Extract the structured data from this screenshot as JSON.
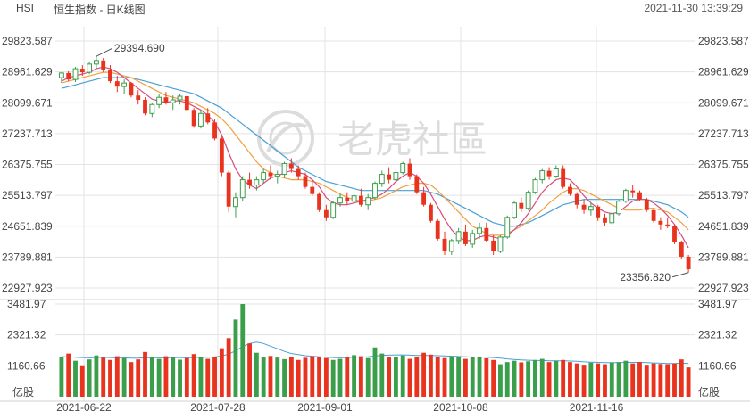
{
  "header": {
    "symbol": "HSI",
    "title": "恒生指数 - 日K线图",
    "timestamp": "2021-11-30 13:39:29"
  },
  "watermark": {
    "text": "老虎社區"
  },
  "colors": {
    "up": "#3a9e4a",
    "down": "#e8331f",
    "ma5": "#d94b7a",
    "ma10": "#f0a040",
    "ma20": "#4a9fd6",
    "grid": "#e3e3e3"
  },
  "chart_data": {
    "type": "candlestick",
    "price_axis": {
      "ticks": [
        "29823.587",
        "28961.629",
        "28099.671",
        "27237.713",
        "26375.755",
        "25513.797",
        "24651.839",
        "23789.881",
        "22927.923"
      ],
      "range": [
        22927.923,
        29823.587
      ]
    },
    "volume_axis": {
      "ticks": [
        "3481.97",
        "2321.32",
        "1160.66"
      ],
      "unit": "亿股",
      "range": [
        0,
        3481.97
      ]
    },
    "x_labels": [
      "2021-06-22",
      "2021-07-28",
      "2021-09-01",
      "2021-10-08",
      "2021-11-16"
    ],
    "annotations": {
      "high": "29394.690",
      "low": "23356.820"
    },
    "price_series": [
      [
        28800,
        28950,
        28650,
        28930
      ],
      [
        28930,
        28980,
        28700,
        28750
      ],
      [
        28750,
        29100,
        28680,
        29050
      ],
      [
        29050,
        29150,
        28850,
        28950
      ],
      [
        28950,
        29250,
        28900,
        29180
      ],
      [
        29180,
        29394.69,
        29050,
        29280
      ],
      [
        29280,
        29350,
        28950,
        29020
      ],
      [
        29020,
        29150,
        28650,
        28700
      ],
      [
        28700,
        28850,
        28400,
        28550
      ],
      [
        28550,
        28750,
        28350,
        28650
      ],
      [
        28650,
        28680,
        28250,
        28300
      ],
      [
        28300,
        28450,
        28050,
        28180
      ],
      [
        28180,
        28250,
        27750,
        27800
      ],
      [
        27800,
        28100,
        27700,
        28050
      ],
      [
        28050,
        28350,
        27950,
        28250
      ],
      [
        28250,
        28400,
        28050,
        28100
      ],
      [
        28100,
        28300,
        27900,
        28180
      ],
      [
        28180,
        28350,
        28050,
        28280
      ],
      [
        28280,
        28320,
        27850,
        27900
      ],
      [
        27900,
        27950,
        27400,
        27450
      ],
      [
        27450,
        27900,
        27380,
        27800
      ],
      [
        27800,
        27950,
        27500,
        27550
      ],
      [
        27550,
        27650,
        27050,
        27100
      ],
      [
        27100,
        27150,
        26050,
        26150
      ],
      [
        26150,
        26200,
        25050,
        25200
      ],
      [
        25200,
        25600,
        24900,
        25450
      ],
      [
        25450,
        26050,
        25350,
        25950
      ],
      [
        25950,
        26150,
        25700,
        25800
      ],
      [
        25800,
        26050,
        25650,
        25950
      ],
      [
        25950,
        26250,
        25850,
        26150
      ],
      [
        26150,
        26350,
        25950,
        26050
      ],
      [
        26050,
        26200,
        25850,
        26100
      ],
      [
        26100,
        26450,
        26000,
        26400
      ],
      [
        26400,
        26550,
        26150,
        26250
      ],
      [
        26250,
        26350,
        25950,
        26050
      ],
      [
        26050,
        26150,
        25700,
        25750
      ],
      [
        25750,
        25950,
        25500,
        25550
      ],
      [
        25550,
        25600,
        25050,
        25100
      ],
      [
        25100,
        25250,
        24800,
        24900
      ],
      [
        24900,
        25350,
        24850,
        25300
      ],
      [
        25300,
        25550,
        25200,
        25450
      ],
      [
        25450,
        25600,
        25250,
        25350
      ],
      [
        25350,
        25650,
        25250,
        25500
      ],
      [
        25500,
        25700,
        25200,
        25250
      ],
      [
        25250,
        25550,
        25100,
        25450
      ],
      [
        25450,
        25900,
        25400,
        25850
      ],
      [
        25850,
        26200,
        25750,
        26100
      ],
      [
        26100,
        26300,
        25850,
        25950
      ],
      [
        25950,
        26250,
        25900,
        26150
      ],
      [
        26150,
        26450,
        26100,
        26400
      ],
      [
        26400,
        26550,
        25950,
        26050
      ],
      [
        26050,
        26100,
        25550,
        25600
      ],
      [
        25600,
        25750,
        25200,
        25250
      ],
      [
        25250,
        25300,
        24750,
        24800
      ],
      [
        24800,
        24850,
        24250,
        24300
      ],
      [
        24300,
        24500,
        23850,
        23950
      ],
      [
        23950,
        24300,
        23850,
        24250
      ],
      [
        24250,
        24600,
        24150,
        24500
      ],
      [
        24500,
        24700,
        24100,
        24150
      ],
      [
        24150,
        24550,
        24050,
        24450
      ],
      [
        24450,
        24750,
        24300,
        24600
      ],
      [
        24600,
        24750,
        24200,
        24250
      ],
      [
        24250,
        24400,
        23850,
        23950
      ],
      [
        23950,
        24400,
        23900,
        24350
      ],
      [
        24350,
        24950,
        24300,
        24900
      ],
      [
        24900,
        25350,
        24850,
        25300
      ],
      [
        25300,
        25450,
        25050,
        25150
      ],
      [
        25150,
        25650,
        25100,
        25600
      ],
      [
        25600,
        26000,
        25550,
        25950
      ],
      [
        25950,
        26250,
        25850,
        26200
      ],
      [
        26200,
        26300,
        25950,
        26050
      ],
      [
        26050,
        26350,
        26000,
        26250
      ],
      [
        26250,
        26350,
        25700,
        25750
      ],
      [
        25750,
        25850,
        25500,
        25550
      ],
      [
        25550,
        25600,
        25150,
        25250
      ],
      [
        25250,
        25400,
        25000,
        25100
      ],
      [
        25100,
        25300,
        24950,
        25200
      ],
      [
        25200,
        25250,
        24800,
        24900
      ],
      [
        24900,
        25000,
        24650,
        24750
      ],
      [
        24750,
        25050,
        24700,
        25000
      ],
      [
        25000,
        25400,
        24950,
        25350
      ],
      [
        25350,
        25700,
        25300,
        25650
      ],
      [
        25650,
        25800,
        25450,
        25600
      ],
      [
        25600,
        25650,
        25350,
        25400
      ],
      [
        25400,
        25450,
        25050,
        25100
      ],
      [
        25100,
        25150,
        24750,
        24800
      ],
      [
        24800,
        24900,
        24550,
        24700
      ],
      [
        24700,
        24900,
        24600,
        24650
      ],
      [
        24650,
        24700,
        24150,
        24200
      ],
      [
        24200,
        24250,
        23750,
        23800
      ],
      [
        23800,
        23850,
        23356.82,
        23450
      ]
    ],
    "ma_series": {
      "ma5": [
        28700,
        28800,
        28850,
        28900,
        28950,
        29050,
        29100,
        29050,
        28950,
        28800,
        28650,
        28500,
        28350,
        28200,
        28150,
        28100,
        28150,
        28150,
        28100,
        28000,
        27900,
        27750,
        27550,
        27200,
        26700,
        26250,
        25950,
        25800,
        25700,
        25850,
        26000,
        26050,
        26150,
        26200,
        26150,
        26100,
        25950,
        25750,
        25450,
        25300,
        25250,
        25250,
        25300,
        25350,
        25400,
        25450,
        25550,
        25700,
        25900,
        26050,
        26150,
        26050,
        25850,
        25550,
        25200,
        24850,
        24550,
        24350,
        24250,
        24250,
        24350,
        24400,
        24350,
        24300,
        24400,
        24550,
        24750,
        25000,
        25300,
        25600,
        25800,
        25950,
        26000,
        25950,
        25750,
        25500,
        25300,
        25150,
        25050,
        25000,
        25050,
        25200,
        25350,
        25400,
        25400,
        25300,
        25150,
        24950,
        24700,
        24400,
        24050
      ],
      "ma10": [
        28650,
        28700,
        28750,
        28800,
        28850,
        28900,
        28950,
        28950,
        28900,
        28850,
        28800,
        28700,
        28600,
        28500,
        28400,
        28300,
        28250,
        28200,
        28150,
        28100,
        28000,
        27900,
        27800,
        27650,
        27450,
        27200,
        26950,
        26700,
        26450,
        26250,
        26150,
        26050,
        26000,
        25950,
        25950,
        25950,
        25900,
        25850,
        25750,
        25650,
        25550,
        25450,
        25400,
        25350,
        25350,
        25400,
        25450,
        25550,
        25650,
        25750,
        25800,
        25850,
        25850,
        25800,
        25650,
        25450,
        25250,
        25050,
        24850,
        24650,
        24550,
        24450,
        24400,
        24400,
        24450,
        24550,
        24650,
        24800,
        24950,
        25100,
        25300,
        25450,
        25600,
        25700,
        25700,
        25650,
        25550,
        25450,
        25350,
        25250,
        25150,
        25100,
        25100,
        25100,
        25150,
        25150,
        25100,
        25050,
        24900,
        24750,
        24550
      ],
      "ma20": [
        28500,
        28550,
        28600,
        28650,
        28700,
        28750,
        28800,
        28800,
        28800,
        28800,
        28800,
        28750,
        28700,
        28650,
        28600,
        28550,
        28500,
        28450,
        28400,
        28350,
        28250,
        28150,
        28050,
        27950,
        27800,
        27650,
        27500,
        27350,
        27200,
        27050,
        26900,
        26750,
        26600,
        26450,
        26300,
        26200,
        26100,
        26000,
        25900,
        25850,
        25800,
        25750,
        25700,
        25650,
        25650,
        25650,
        25650,
        25650,
        25650,
        25650,
        25650,
        25650,
        25650,
        25600,
        25550,
        25450,
        25350,
        25250,
        25150,
        25050,
        24950,
        24850,
        24750,
        24700,
        24650,
        24650,
        24700,
        24750,
        24850,
        24950,
        25050,
        25150,
        25250,
        25300,
        25350,
        25400,
        25400,
        25400,
        25400,
        25400,
        25400,
        25400,
        25400,
        25400,
        25400,
        25350,
        25300,
        25250,
        25150,
        25050,
        24900
      ]
    },
    "volume_series": [
      1490,
      1620,
      1350,
      1180,
      1400,
      1550,
      1470,
      1380,
      1520,
      1450,
      1300,
      1400,
      1680,
      1480,
      1420,
      1520,
      1480,
      1390,
      1450,
      1600,
      1500,
      1420,
      1480,
      1820,
      2200,
      2900,
      3481.97,
      2000,
      1650,
      1480,
      1530,
      1470,
      1410,
      1500,
      1380,
      1460,
      1520,
      1480,
      1450,
      1380,
      1420,
      1500,
      1560,
      1520,
      1450,
      1850,
      1620,
      1500,
      1480,
      1550,
      1420,
      1500,
      1650,
      1580,
      1480,
      1450,
      1520,
      1500,
      1420,
      1480,
      1510,
      1440,
      1380,
      1220,
      1300,
      1350,
      1290,
      1330,
      1380,
      1420,
      1300,
      1350,
      1380,
      1300,
      1250,
      1200,
      1280,
      1250,
      1220,
      1280,
      1300,
      1350,
      1250,
      1300,
      1200,
      1250,
      1230,
      1220,
      1250,
      1400,
      1100
    ],
    "volume_ma": [
      1500,
      1500,
      1480,
      1470,
      1460,
      1470,
      1480,
      1470,
      1460,
      1460,
      1450,
      1450,
      1460,
      1470,
      1460,
      1460,
      1470,
      1470,
      1460,
      1470,
      1480,
      1480,
      1490,
      1530,
      1600,
      1720,
      1880,
      2000,
      2050,
      2000,
      1900,
      1800,
      1700,
      1620,
      1580,
      1540,
      1520,
      1500,
      1480,
      1470,
      1460,
      1470,
      1480,
      1490,
      1500,
      1530,
      1550,
      1560,
      1570,
      1570,
      1560,
      1550,
      1550,
      1550,
      1540,
      1530,
      1520,
      1510,
      1500,
      1490,
      1490,
      1480,
      1470,
      1450,
      1420,
      1400,
      1380,
      1370,
      1360,
      1360,
      1350,
      1350,
      1350,
      1340,
      1330,
      1310,
      1300,
      1290,
      1280,
      1280,
      1280,
      1290,
      1290,
      1290,
      1280,
      1270,
      1260,
      1250,
      1250,
      1260,
      1250
    ]
  }
}
